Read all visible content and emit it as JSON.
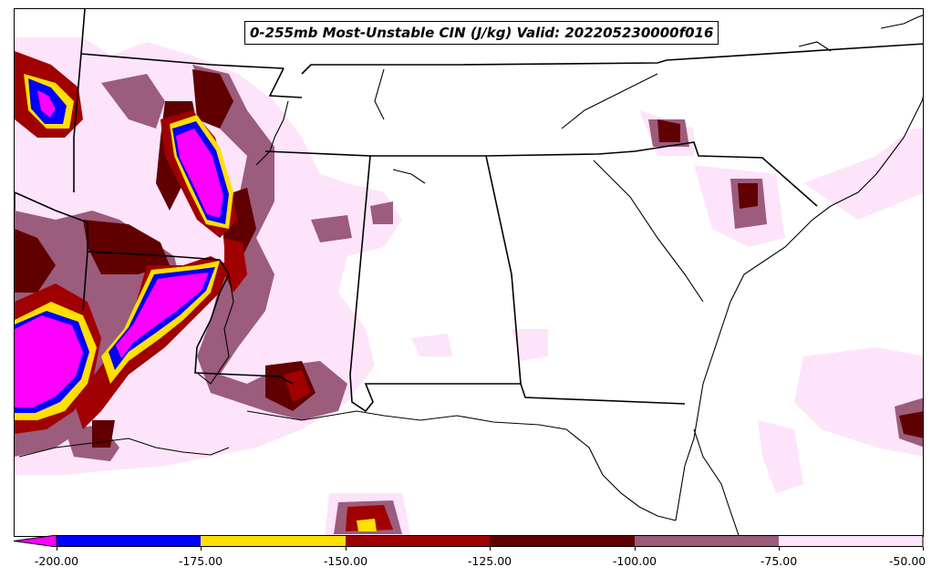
{
  "title": "0-255mb Most-Unstable CIN (J/kg) Valid: 202205230000f016",
  "colorbar": {
    "ticks": [
      "-200.00",
      "-175.00",
      "-150.00",
      "-125.00",
      "-100.00",
      "-75.00",
      "-50.00"
    ],
    "bins": [
      {
        "range": "<-200",
        "color": "#ff00ff"
      },
      {
        "range": "-200 to -175",
        "color": "#0000ff"
      },
      {
        "range": "-175 to -150",
        "color": "#ffe000"
      },
      {
        "range": "-150 to -125",
        "color": "#a00000"
      },
      {
        "range": "-125 to -100",
        "color": "#600000"
      },
      {
        "range": "-100 to -75",
        "color": "#9c5c7c"
      },
      {
        "range": "-75 to -50",
        "color": "#fde4fa"
      }
    ]
  },
  "palette": {
    "magenta": "#ff00ff",
    "blue": "#0000ff",
    "yellow": "#ffe000",
    "red": "#a00000",
    "darkred": "#600000",
    "mauve": "#9c5c7c",
    "pink": "#fde4fa"
  }
}
